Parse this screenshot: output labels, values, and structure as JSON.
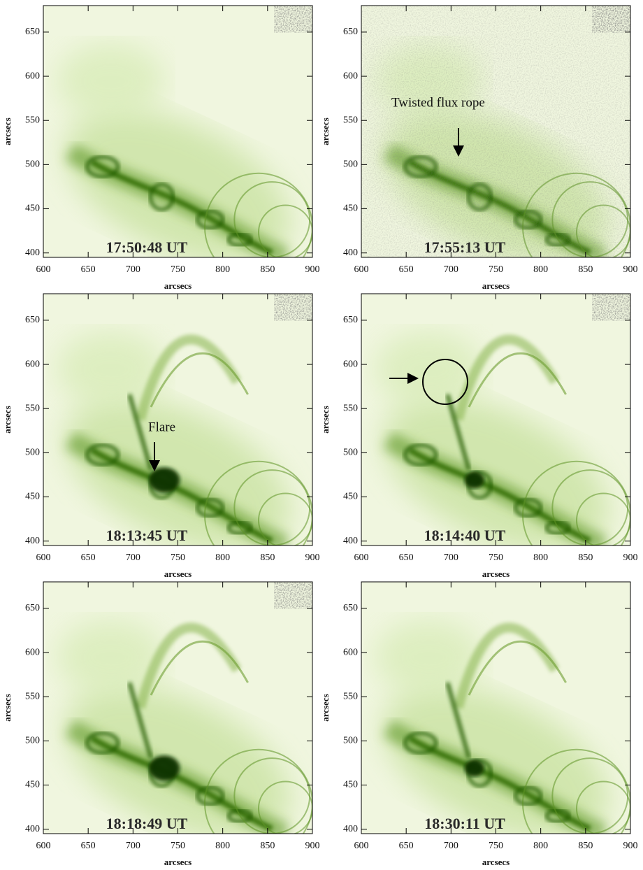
{
  "chart_data": [
    {
      "type": "image",
      "annotation": "17:50:48 UT",
      "xlabel": "arcsecs",
      "ylabel": "arcsecs",
      "xlim": [
        600,
        900
      ],
      "ylim": [
        395,
        680
      ],
      "xticks": [
        600,
        650,
        700,
        750,
        800,
        850,
        900
      ],
      "yticks": [
        400,
        450,
        500,
        550,
        600,
        650
      ]
    },
    {
      "type": "image",
      "annotation": "17:55:13 UT",
      "labels": [
        "Twisted flux rope"
      ],
      "xlabel": "arcsecs",
      "ylabel": "arcsecs",
      "xlim": [
        600,
        900
      ],
      "ylim": [
        395,
        680
      ],
      "xticks": [
        600,
        650,
        700,
        750,
        800,
        850,
        900
      ],
      "yticks": [
        400,
        450,
        500,
        550,
        600,
        650
      ]
    },
    {
      "type": "image",
      "annotation": "18:13:45 UT",
      "labels": [
        "Flare"
      ],
      "xlabel": "arcsecs",
      "ylabel": "arcsecs",
      "xlim": [
        600,
        900
      ],
      "ylim": [
        395,
        680
      ],
      "xticks": [
        600,
        650,
        700,
        750,
        800,
        850,
        900
      ],
      "yticks": [
        400,
        450,
        500,
        550,
        600,
        650
      ]
    },
    {
      "type": "image",
      "annotation": "18:14:40 UT",
      "xlabel": "arcsecs",
      "ylabel": "arcsecs",
      "xlim": [
        600,
        900
      ],
      "ylim": [
        395,
        680
      ],
      "xticks": [
        600,
        650,
        700,
        750,
        800,
        850,
        900
      ],
      "yticks": [
        400,
        450,
        500,
        550,
        600,
        650
      ]
    },
    {
      "type": "image",
      "annotation": "18:18:49 UT",
      "xlabel": "arcsecs",
      "ylabel": "arcsecs",
      "xlim": [
        600,
        900
      ],
      "ylim": [
        395,
        680
      ],
      "xticks": [
        600,
        650,
        700,
        750,
        800,
        850,
        900
      ],
      "yticks": [
        400,
        450,
        500,
        550,
        600,
        650
      ]
    },
    {
      "type": "image",
      "annotation": "18:30:11 UT",
      "xlabel": "arcsecs",
      "ylabel": "arcsecs",
      "xlim": [
        600,
        900
      ],
      "ylim": [
        395,
        680
      ],
      "xticks": [
        600,
        650,
        700,
        750,
        800,
        850,
        900
      ],
      "yticks": [
        400,
        450,
        500,
        550,
        600,
        650
      ]
    }
  ]
}
